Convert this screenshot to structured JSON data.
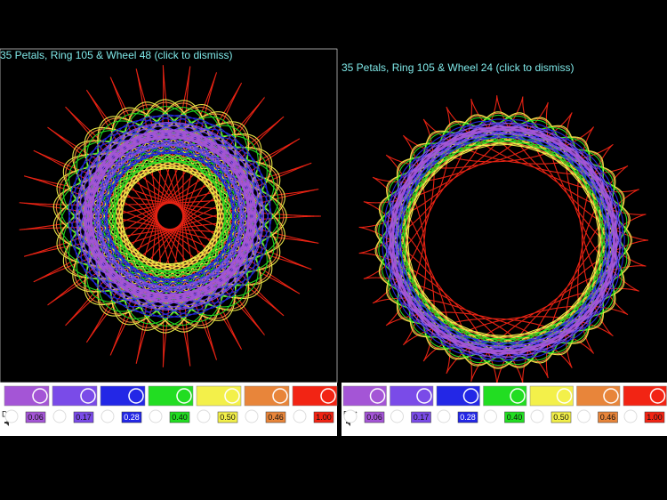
{
  "panels": [
    {
      "title": "35 Petals, Ring 105 & Wheel 48 (click to dismiss)",
      "colors": [
        "#a455d6",
        "#7a4be8",
        "#2327e6",
        "#22dd22",
        "#f3f04a",
        "#e8853a",
        "#f22414"
      ],
      "dist_label": "Dist",
      "dists": [
        "0.06",
        "0.17",
        "0.28",
        "0.40",
        "0.50",
        "0.46",
        "1.00"
      ]
    },
    {
      "title": "35 Petals, Ring 105 & Wheel 24 (click to dismiss)",
      "colors": [
        "#a455d6",
        "#7a4be8",
        "#2327e6",
        "#22dd22",
        "#f3f04a",
        "#e8853a",
        "#f22414"
      ],
      "dist_label": "Dist",
      "dists": [
        "0.06",
        "0.17",
        "0.28",
        "0.40",
        "0.50",
        "0.46",
        "1.00"
      ]
    }
  ]
}
